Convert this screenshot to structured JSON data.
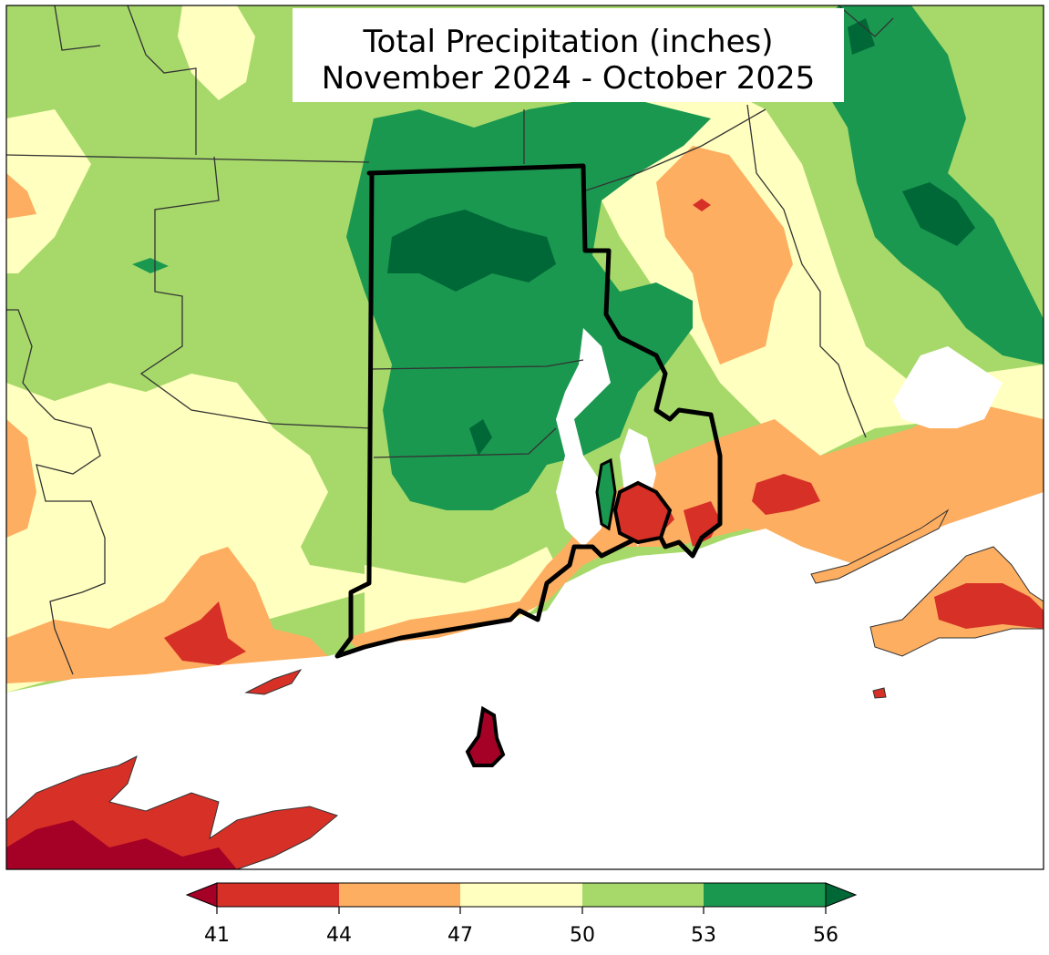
{
  "title": {
    "line1": "Total Precipitation (inches)",
    "line2": "November 2024 - October 2025"
  },
  "legend": {
    "ticks": [
      "41",
      "44",
      "47",
      "50",
      "53",
      "56"
    ],
    "bins": [
      {
        "range": "41-44",
        "color": "#d73027"
      },
      {
        "range": "44-47",
        "color": "#fdae61"
      },
      {
        "range": "47-50",
        "color": "#ffffbf"
      },
      {
        "range": "50-53",
        "color": "#a6d96a"
      },
      {
        "range": "53-56",
        "color": "#1a9850"
      }
    ],
    "under_color": "#a50026",
    "over_color": "#006837"
  },
  "colors": {
    "dark_green": "#006837",
    "green": "#1a9850",
    "light_green": "#a6d96a",
    "pale_yellow": "#ffffbf",
    "orange": "#fdae61",
    "red": "#d73027",
    "dark_red": "#a50026",
    "water": "#ffffff"
  }
}
